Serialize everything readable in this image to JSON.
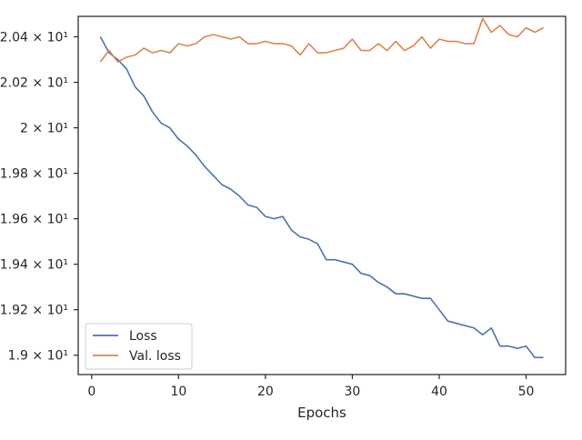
{
  "chart_data": {
    "type": "line",
    "title": "",
    "xlabel": "Epochs",
    "ylabel": "",
    "xlim": [
      -1.55,
      54.55
    ],
    "ylim": [
      18.915,
      20.49
    ],
    "x_ticks": [
      0,
      10,
      20,
      30,
      40,
      50
    ],
    "x_tick_labels": [
      "0",
      "10",
      "20",
      "30",
      "40",
      "50"
    ],
    "y_ticks": [
      19.0,
      19.2,
      19.4,
      19.6,
      19.8,
      20.0,
      20.2,
      20.4
    ],
    "y_tick_labels": [
      "1.9 × 10¹",
      "1.92 × 10¹",
      "1.94 × 10¹",
      "1.96 × 10¹",
      "1.98 × 10¹",
      "2 × 10¹",
      "2.02 × 10¹",
      "2.04 × 10¹"
    ],
    "grid": false,
    "legend_position": "lower-left",
    "x": [
      1,
      2,
      3,
      4,
      5,
      6,
      7,
      8,
      9,
      10,
      11,
      12,
      13,
      14,
      15,
      16,
      17,
      18,
      19,
      20,
      21,
      22,
      23,
      24,
      25,
      26,
      27,
      28,
      29,
      30,
      31,
      32,
      33,
      34,
      35,
      36,
      37,
      38,
      39,
      40,
      41,
      42,
      43,
      44,
      45,
      46,
      47,
      48,
      49,
      50,
      51,
      52
    ],
    "series": [
      {
        "name": "Loss",
        "color": "#4c72b0",
        "values": [
          20.4,
          20.33,
          20.3,
          20.26,
          20.18,
          20.14,
          20.07,
          20.02,
          20.0,
          19.95,
          19.92,
          19.88,
          19.83,
          19.79,
          19.75,
          19.73,
          19.7,
          19.66,
          19.65,
          19.61,
          19.6,
          19.61,
          19.55,
          19.52,
          19.51,
          19.49,
          19.42,
          19.42,
          19.41,
          19.4,
          19.36,
          19.35,
          19.32,
          19.3,
          19.27,
          19.27,
          19.26,
          19.25,
          19.25,
          19.2,
          19.15,
          19.14,
          19.13,
          19.12,
          19.09,
          19.12,
          19.04,
          19.04,
          19.03,
          19.04,
          18.99,
          18.99
        ]
      },
      {
        "name": "Val. loss",
        "color": "#dd8452",
        "values": [
          20.29,
          20.34,
          20.29,
          20.31,
          20.32,
          20.35,
          20.33,
          20.34,
          20.33,
          20.37,
          20.36,
          20.37,
          20.4,
          20.41,
          20.4,
          20.39,
          20.4,
          20.37,
          20.37,
          20.38,
          20.37,
          20.37,
          20.36,
          20.32,
          20.37,
          20.33,
          20.33,
          20.34,
          20.35,
          20.39,
          20.34,
          20.34,
          20.37,
          20.34,
          20.38,
          20.34,
          20.36,
          20.4,
          20.35,
          20.39,
          20.38,
          20.38,
          20.37,
          20.37,
          20.48,
          20.42,
          20.45,
          20.41,
          20.4,
          20.44,
          20.42,
          20.44
        ]
      }
    ]
  }
}
